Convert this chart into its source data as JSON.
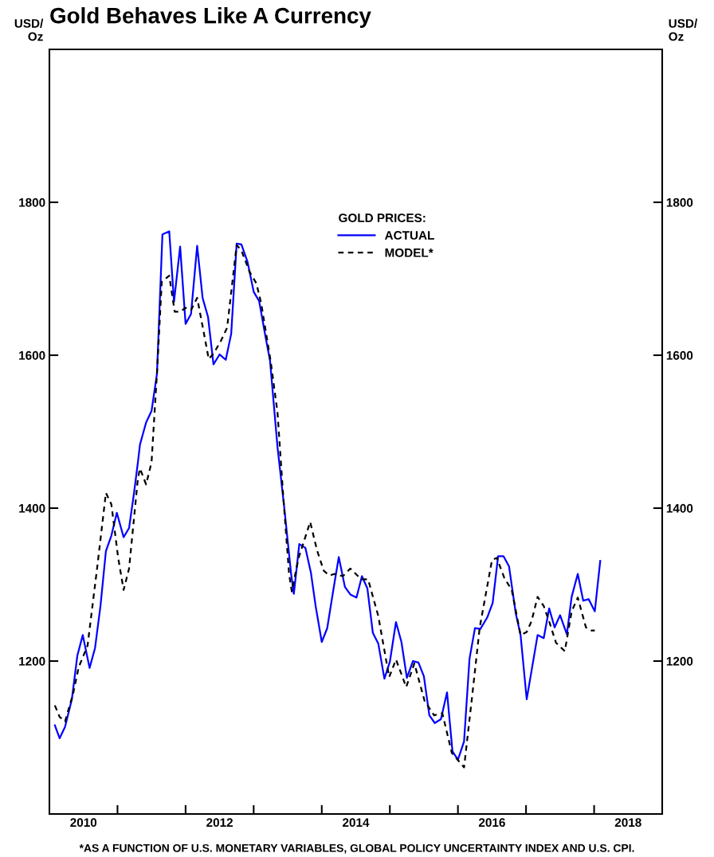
{
  "chart_data": {
    "type": "line",
    "title": "Gold Behaves Like A Currency",
    "ylabel": "USD/\nOz",
    "y2label": "USD/\nOz",
    "legend_title": "GOLD PRICES:",
    "annotations": [
      "*AS A FUNCTION OF U.S. MONETARY VARIABLES, GLOBAL POLICY UNCERTAINTY INDEX AND U.S. CPI."
    ],
    "series": [
      {
        "name": "ACTUAL",
        "color": "#0000ff",
        "line_style": "solid",
        "x": [
          2010.08,
          2010.15,
          2010.23,
          2010.33,
          2010.41,
          2010.49,
          2010.59,
          2010.67,
          2010.75,
          2010.83,
          2010.91,
          2010.99,
          2011.09,
          2011.17,
          2011.24,
          2011.3,
          2011.33,
          2011.42,
          2011.5,
          2011.58,
          2011.66,
          2011.76,
          2011.83,
          2011.92,
          2012.0,
          2012.08,
          2012.17,
          2012.25,
          2012.33,
          2012.41,
          2012.5,
          2012.59,
          2012.67,
          2012.75,
          2012.82,
          2012.91,
          2013.0,
          2013.08,
          2013.17,
          2013.24,
          2013.35,
          2013.45,
          2013.55,
          2013.59,
          2013.67,
          2013.76,
          2013.84,
          2013.91,
          2014.0,
          2014.08,
          2014.17,
          2014.25,
          2014.34,
          2014.42,
          2014.51,
          2014.59,
          2014.67,
          2014.75,
          2014.83,
          2014.92,
          2015.0,
          2015.09,
          2015.17,
          2015.25,
          2015.34,
          2015.42,
          2015.5,
          2015.58,
          2015.66,
          2015.75,
          2015.84,
          2015.92,
          2016.0,
          2016.09,
          2016.17,
          2016.25,
          2016.33,
          2016.43,
          2016.51,
          2016.59,
          2016.67,
          2016.75,
          2016.85,
          2016.92,
          2017.01,
          2017.09,
          2017.17,
          2017.26,
          2017.34,
          2017.42,
          2017.5,
          2017.6,
          2017.67,
          2017.76,
          2017.84,
          2017.92,
          2018.01,
          2018.09
        ],
        "values": [
          1116,
          1099,
          1114,
          1150,
          1207,
          1234,
          1191,
          1217,
          1272,
          1344,
          1364,
          1394,
          1362,
          1374,
          1418,
          1460,
          1483,
          1512,
          1527,
          1576,
          1758,
          1762,
          1670,
          1742,
          1641,
          1654,
          1743,
          1675,
          1650,
          1588,
          1601,
          1594,
          1628,
          1746,
          1745,
          1722,
          1683,
          1671,
          1626,
          1593,
          1480,
          1400,
          1314,
          1288,
          1353,
          1348,
          1316,
          1272,
          1225,
          1243,
          1293,
          1336,
          1297,
          1287,
          1283,
          1311,
          1295,
          1237,
          1223,
          1177,
          1199,
          1251,
          1225,
          1178,
          1200,
          1198,
          1180,
          1129,
          1119,
          1124,
          1159,
          1082,
          1071,
          1095,
          1203,
          1243,
          1242,
          1257,
          1276,
          1337,
          1337,
          1324,
          1262,
          1234,
          1150,
          1192,
          1234,
          1230,
          1269,
          1244,
          1260,
          1235,
          1284,
          1314,
          1279,
          1281,
          1265,
          1331
        ]
      },
      {
        "name": "MODEL*",
        "color": "#000000",
        "line_style": "dashed",
        "x": [
          2010.08,
          2010.15,
          2010.23,
          2010.35,
          2010.43,
          2010.56,
          2010.7,
          2010.83,
          2010.91,
          2011.01,
          2011.09,
          2011.17,
          2011.3,
          2011.33,
          2011.42,
          2011.5,
          2011.58,
          2011.65,
          2011.76,
          2011.84,
          2011.92,
          2012.0,
          2012.08,
          2012.17,
          2012.26,
          2012.34,
          2012.41,
          2012.52,
          2012.61,
          2012.75,
          2012.82,
          2012.94,
          2013.04,
          2013.11,
          2013.25,
          2013.35,
          2013.43,
          2013.52,
          2013.56,
          2013.66,
          2013.83,
          2013.93,
          2014.03,
          2014.11,
          2014.19,
          2014.31,
          2014.42,
          2014.58,
          2014.68,
          2014.83,
          2014.99,
          2015.09,
          2015.24,
          2015.36,
          2015.51,
          2015.65,
          2015.77,
          2015.91,
          2016.09,
          2016.21,
          2016.32,
          2016.5,
          2016.57,
          2016.68,
          2016.79,
          2016.92,
          2017.01,
          2017.08,
          2017.17,
          2017.26,
          2017.35,
          2017.44,
          2017.57,
          2017.67,
          2017.76,
          2017.88,
          2017.96,
          2018.01
        ],
        "values": [
          1142,
          1127,
          1121,
          1158,
          1192,
          1220,
          1321,
          1420,
          1405,
          1335,
          1293,
          1321,
          1439,
          1452,
          1431,
          1460,
          1577,
          1696,
          1704,
          1657,
          1657,
          1662,
          1659,
          1675,
          1633,
          1595,
          1602,
          1619,
          1636,
          1744,
          1737,
          1709,
          1694,
          1668,
          1592,
          1525,
          1421,
          1314,
          1291,
          1335,
          1382,
          1345,
          1318,
          1312,
          1314,
          1311,
          1321,
          1307,
          1307,
          1259,
          1179,
          1202,
          1166,
          1197,
          1148,
          1129,
          1132,
          1080,
          1061,
          1155,
          1244,
          1332,
          1335,
          1309,
          1293,
          1234,
          1238,
          1252,
          1284,
          1272,
          1249,
          1224,
          1213,
          1265,
          1283,
          1244,
          1240,
          1240
        ]
      }
    ],
    "xlim": [
      2010,
      2019
    ],
    "xticks": [
      {
        "value": 2010.5,
        "label": "2010"
      },
      {
        "value": 2011,
        "label": null
      },
      {
        "value": 2012,
        "label": null
      },
      {
        "value": 2012.5,
        "label": "2012"
      },
      {
        "value": 2013,
        "label": null
      },
      {
        "value": 2014,
        "label": null
      },
      {
        "value": 2014.5,
        "label": "2014"
      },
      {
        "value": 2015,
        "label": null
      },
      {
        "value": 2016,
        "label": null
      },
      {
        "value": 2016.5,
        "label": "2016"
      },
      {
        "value": 2017,
        "label": null
      },
      {
        "value": 2018,
        "label": null
      },
      {
        "value": 2018.5,
        "label": "2018"
      }
    ],
    "ylim": [
      1000,
      2000
    ],
    "yticks": [
      1200,
      1400,
      1600,
      1800
    ],
    "y2lim": [
      1000,
      2000
    ],
    "y2ticks": [
      1200,
      1400,
      1600,
      1800
    ],
    "grid": false,
    "legend": "top",
    "marker": "none"
  }
}
